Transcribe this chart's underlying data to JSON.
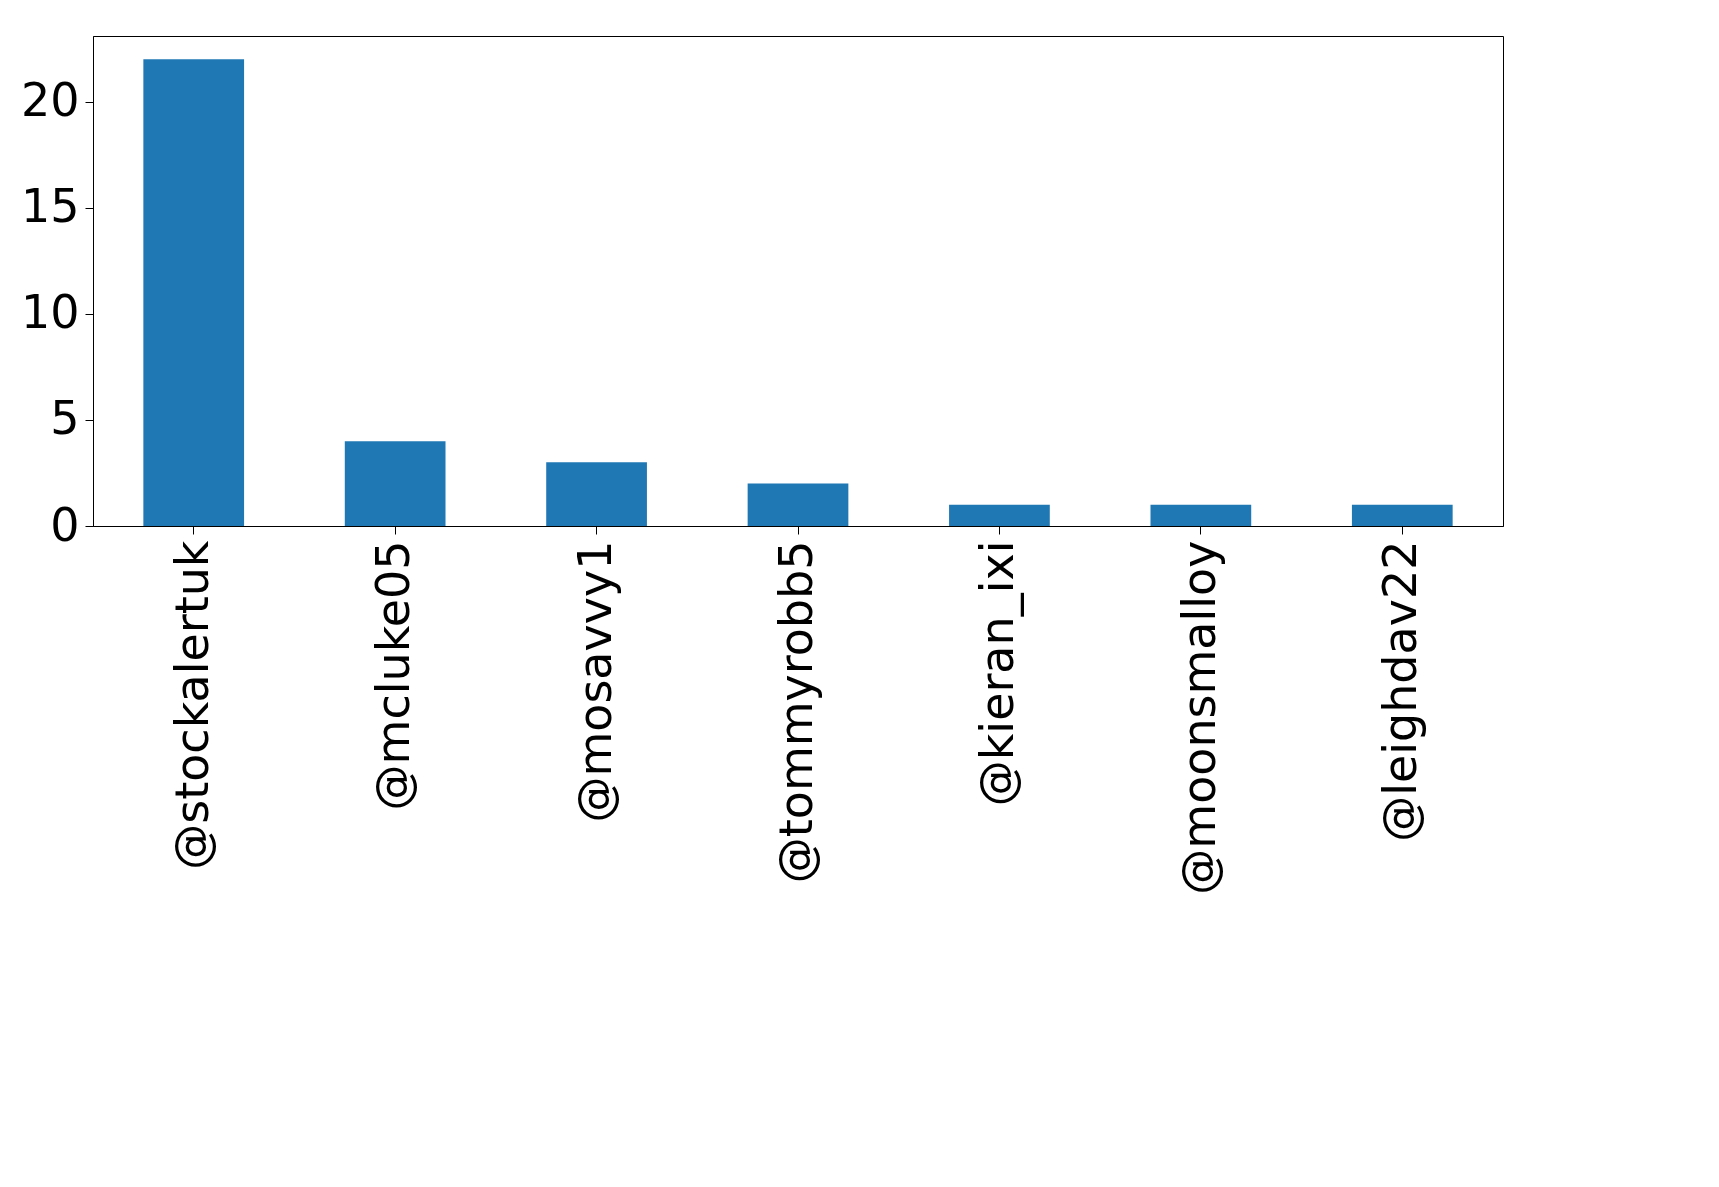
{
  "chart_data": {
    "type": "bar",
    "categories": [
      "@stockalertuk",
      "@mcluke05",
      "@mosavvy1",
      "@tommyrobb5",
      "@kieran_ixi",
      "@moonsmalloy",
      "@leighdav22"
    ],
    "values": [
      22,
      4,
      3,
      2,
      1,
      1,
      1
    ],
    "color": "#1f77b4",
    "ylim": [
      0,
      23.1
    ],
    "yticks": [
      0,
      5,
      10,
      15,
      20
    ],
    "grid": false
  }
}
